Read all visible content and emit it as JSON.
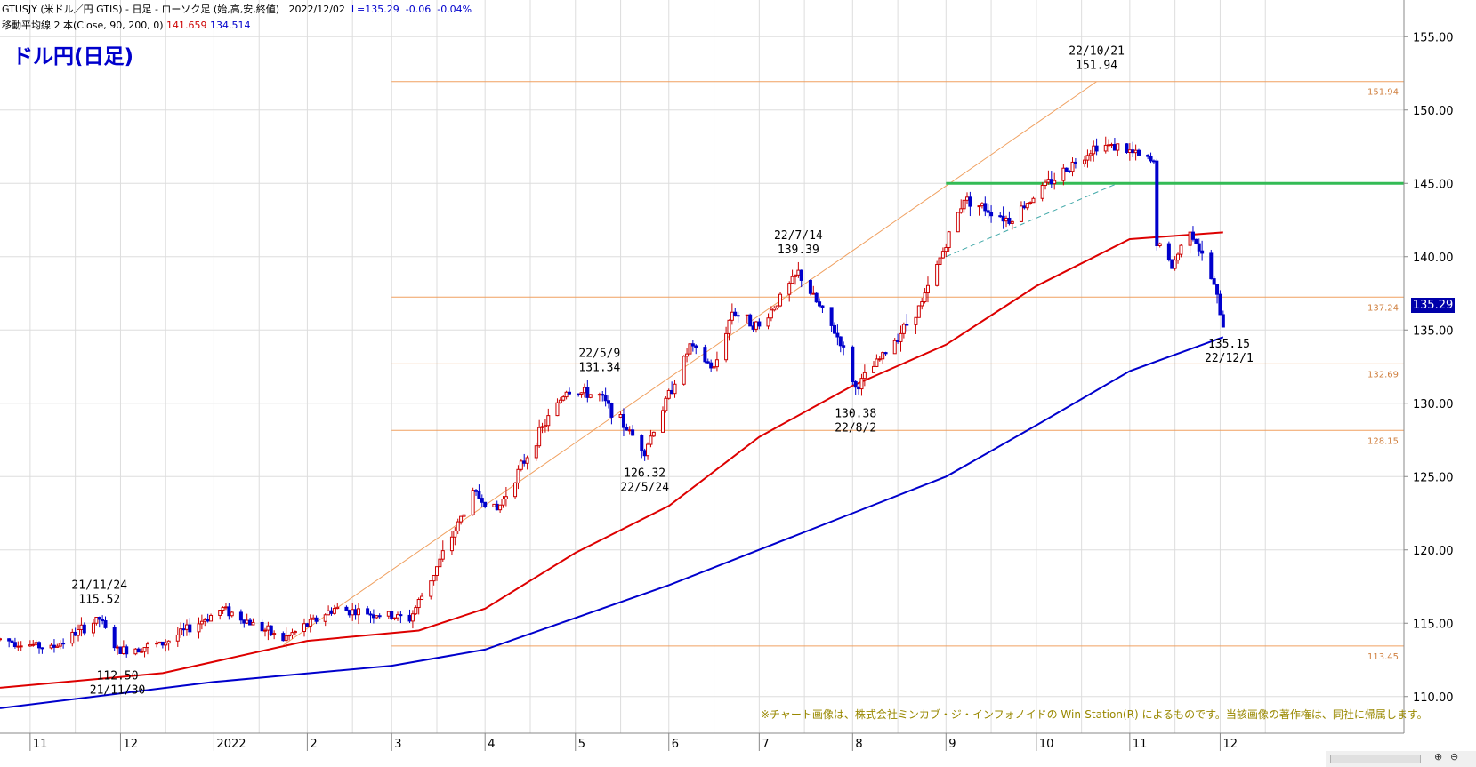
{
  "header": {
    "line1_symbol": "GTUSJY (米ドル／円 GTIS) - 日足 - ローソク足 (始,高,安,終値)",
    "line1_date": "2022/12/02",
    "line1_last": "L=135.29",
    "line1_change": "-0.06",
    "line1_pct": "-0.04%",
    "line2_label": "移動平均線 2 本(Close, 90, 200, 0)",
    "line2_ma90": "141.659",
    "line2_ma200": "134.514"
  },
  "title": "ドル円(日足)",
  "copyright": "※チャート画像は、株式会社ミンカブ・ジ・インフォノイドの Win-Station(R) によるものです。当該画像の著作権は、同社に帰属します。",
  "last_price_label": "135.29",
  "colors": {
    "up_candle": "#cc0000",
    "down_candle": "#0000cc",
    "ma90": "#dd0000",
    "ma200": "#0000cc",
    "fib_line": "#f0a060",
    "resistance": "#33bb55",
    "grid": "#dddddd",
    "title": "#0000cc"
  },
  "chart_data": {
    "type": "candlestick",
    "instrument": "USD/JPY daily",
    "ylim": [
      107.5,
      157.5
    ],
    "y_ticks": [
      "110.00",
      "115.00",
      "120.00",
      "125.00",
      "130.00",
      "135.00",
      "140.00",
      "145.00",
      "150.00",
      "155.00"
    ],
    "x_month_labels": [
      "11",
      "12",
      "2022",
      "2",
      "3",
      "4",
      "5",
      "6",
      "7",
      "8",
      "9",
      "10",
      "11",
      "12"
    ],
    "x_month_starts": [
      "2021-11-01",
      "2021-12-01",
      "2022-01-01",
      "2022-02-01",
      "2022-03-01",
      "2022-04-01",
      "2022-05-01",
      "2022-06-01",
      "2022-07-01",
      "2022-08-01",
      "2022-09-01",
      "2022-10-01",
      "2022-11-01",
      "2022-12-01"
    ],
    "x_range": [
      "2021-10-22",
      "2023-01-31"
    ],
    "close_anchors": [
      {
        "date": "2021-10-22",
        "value": 113.9
      },
      {
        "date": "2021-11-08",
        "value": 113.3
      },
      {
        "date": "2021-11-24",
        "value": 115.3
      },
      {
        "date": "2021-11-30",
        "value": 113.1
      },
      {
        "date": "2021-12-15",
        "value": 113.6
      },
      {
        "date": "2022-01-04",
        "value": 116.0
      },
      {
        "date": "2022-01-24",
        "value": 113.9
      },
      {
        "date": "2022-02-10",
        "value": 116.0
      },
      {
        "date": "2022-03-07",
        "value": 115.3
      },
      {
        "date": "2022-03-15",
        "value": 118.4
      },
      {
        "date": "2022-03-28",
        "value": 123.9
      },
      {
        "date": "2022-04-05",
        "value": 122.7
      },
      {
        "date": "2022-04-20",
        "value": 128.3
      },
      {
        "date": "2022-04-28",
        "value": 130.9
      },
      {
        "date": "2022-05-09",
        "value": 130.5
      },
      {
        "date": "2022-05-24",
        "value": 126.8
      },
      {
        "date": "2022-06-08",
        "value": 133.9
      },
      {
        "date": "2022-06-16",
        "value": 132.3
      },
      {
        "date": "2022-06-22",
        "value": 136.3
      },
      {
        "date": "2022-07-01",
        "value": 135.2
      },
      {
        "date": "2022-07-14",
        "value": 138.9
      },
      {
        "date": "2022-07-28",
        "value": 134.2
      },
      {
        "date": "2022-08-02",
        "value": 131.0
      },
      {
        "date": "2022-08-12",
        "value": 133.5
      },
      {
        "date": "2022-08-24",
        "value": 136.8
      },
      {
        "date": "2022-09-07",
        "value": 144.0
      },
      {
        "date": "2022-09-22",
        "value": 142.5
      },
      {
        "date": "2022-10-03",
        "value": 144.7
      },
      {
        "date": "2022-10-21",
        "value": 147.6
      },
      {
        "date": "2022-10-28",
        "value": 147.5
      },
      {
        "date": "2022-11-09",
        "value": 146.4
      },
      {
        "date": "2022-11-10",
        "value": 141.0
      },
      {
        "date": "2022-11-15",
        "value": 139.3
      },
      {
        "date": "2022-11-21",
        "value": 142.0
      },
      {
        "date": "2022-11-29",
        "value": 138.0
      },
      {
        "date": "2022-12-02",
        "value": 135.3
      }
    ],
    "ma90": [
      {
        "date": "2021-10-22",
        "value": 110.6
      },
      {
        "date": "2021-12-15",
        "value": 111.6
      },
      {
        "date": "2022-02-01",
        "value": 113.8
      },
      {
        "date": "2022-03-10",
        "value": 114.5
      },
      {
        "date": "2022-04-01",
        "value": 116.0
      },
      {
        "date": "2022-05-01",
        "value": 119.8
      },
      {
        "date": "2022-06-01",
        "value": 123.0
      },
      {
        "date": "2022-07-01",
        "value": 127.7
      },
      {
        "date": "2022-08-01",
        "value": 131.2
      },
      {
        "date": "2022-09-01",
        "value": 134.0
      },
      {
        "date": "2022-10-01",
        "value": 138.0
      },
      {
        "date": "2022-11-01",
        "value": 141.2
      },
      {
        "date": "2022-12-02",
        "value": 141.66
      }
    ],
    "ma200": [
      {
        "date": "2021-10-22",
        "value": 109.2
      },
      {
        "date": "2022-01-01",
        "value": 111.0
      },
      {
        "date": "2022-03-01",
        "value": 112.1
      },
      {
        "date": "2022-04-01",
        "value": 113.2
      },
      {
        "date": "2022-06-01",
        "value": 117.6
      },
      {
        "date": "2022-08-01",
        "value": 122.5
      },
      {
        "date": "2022-09-01",
        "value": 125.0
      },
      {
        "date": "2022-10-01",
        "value": 128.5
      },
      {
        "date": "2022-11-01",
        "value": 132.2
      },
      {
        "date": "2022-12-02",
        "value": 134.51
      }
    ],
    "horizontal_levels": [
      {
        "value": 151.94,
        "label": "151.94"
      },
      {
        "value": 137.24,
        "label": "137.24"
      },
      {
        "value": 132.69,
        "label": "132.69"
      },
      {
        "value": 128.15,
        "label": "128.15"
      },
      {
        "value": 113.45,
        "label": "113.45"
      }
    ],
    "fib_lines_start": "2022-03-01",
    "resistance": {
      "value": 145.0,
      "start": "2022-09-01",
      "end": "2023-01-31"
    },
    "trend_line": {
      "start_date": "2022-01-24",
      "start_value": 113.5,
      "end_date": "2022-10-21",
      "end_value": 151.94
    },
    "dashed_trend": {
      "start_date": "2022-09-01",
      "start_value": 140.0,
      "end_date": "2022-10-28",
      "end_value": 145.0
    },
    "annotations": [
      {
        "date": "2021-11-24",
        "value": 115.52,
        "date_label": "21/11/24",
        "value_label": "115.52",
        "position": "above"
      },
      {
        "date": "2021-11-30",
        "value": 112.5,
        "date_label": "21/11/30",
        "value_label": "112.50",
        "position": "below"
      },
      {
        "date": "2022-05-09",
        "value": 131.34,
        "date_label": "22/5/9",
        "value_label": "131.34",
        "position": "above"
      },
      {
        "date": "2022-05-24",
        "value": 126.32,
        "date_label": "22/5/24",
        "value_label": "126.32",
        "position": "below"
      },
      {
        "date": "2022-07-14",
        "value": 139.39,
        "date_label": "22/7/14",
        "value_label": "139.39",
        "position": "above"
      },
      {
        "date": "2022-08-02",
        "value": 130.38,
        "date_label": "22/8/2",
        "value_label": "130.38",
        "position": "below"
      },
      {
        "date": "2022-10-21",
        "value": 151.94,
        "date_label": "22/10/21",
        "value_label": "151.94",
        "position": "above"
      },
      {
        "date": "2022-12-01",
        "value": 135.15,
        "date_label": "22/12/1",
        "value_label": "135.15",
        "position": "below-right"
      }
    ]
  }
}
